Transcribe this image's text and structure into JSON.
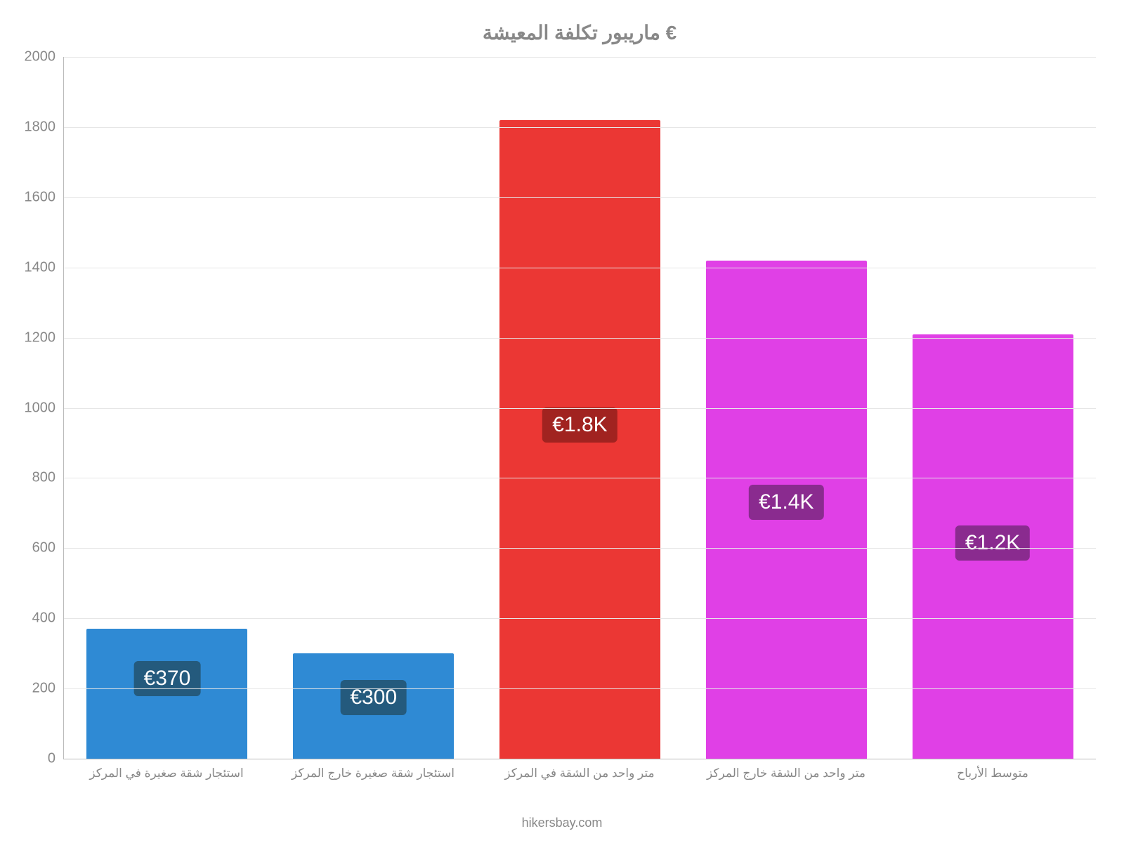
{
  "chart": {
    "type": "bar",
    "title": "ماريبور تكلفة المعيشة €",
    "title_color": "#888888",
    "title_fontsize": 28,
    "background_color": "#ffffff",
    "axis_color": "#bbbbbb",
    "grid_color": "#e6e6e6",
    "tick_font_color": "#888888",
    "tick_fontsize": 20,
    "xlabel_fontsize": 17,
    "xlabel_color": "#888888",
    "label_badge_fontsize": 30,
    "label_badge_text_color": "#ffffff",
    "ylim": [
      0,
      2000
    ],
    "ytick_step": 200,
    "yticks": [
      "0",
      "200",
      "400",
      "600",
      "800",
      "1000",
      "1200",
      "1400",
      "1600",
      "1800",
      "2000"
    ],
    "bar_width_pct": 78,
    "series": [
      {
        "category": "استئجار شقة صغيرة في المركز",
        "value": 370,
        "value_label": "€370",
        "bar_color": "#2f8ad4",
        "badge_color": "#245a7d"
      },
      {
        "category": "استئجار شقة صغيرة خارج المركز",
        "value": 300,
        "value_label": "€300",
        "bar_color": "#2f8ad4",
        "badge_color": "#245a7d"
      },
      {
        "category": "متر واحد من الشقة في المركز",
        "value": 1820,
        "value_label": "€1.8K",
        "bar_color": "#eb3734",
        "badge_color": "#a12320"
      },
      {
        "category": "متر واحد من الشقة خارج المركز",
        "value": 1420,
        "value_label": "€1.4K",
        "bar_color": "#e040e6",
        "badge_color": "#8a2b8f"
      },
      {
        "category": "متوسط الأرباح",
        "value": 1210,
        "value_label": "€1.2K",
        "bar_color": "#e040e6",
        "badge_color": "#8a2b8f"
      }
    ],
    "footer": "hikersbay.com",
    "footer_color": "#888888",
    "footer_fontsize": 18
  }
}
